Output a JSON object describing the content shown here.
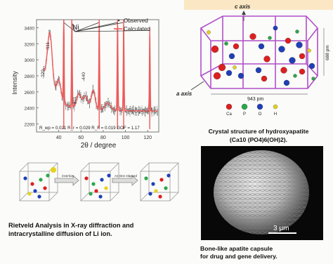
{
  "chart_data": {
    "type": "line",
    "xlabel": "2θ / degree",
    "ylabel": "Intensity",
    "xlim": [
      20,
      130
    ],
    "ylim": [
      2100,
      3500
    ],
    "x_ticks": [
      40,
      60,
      80,
      100,
      120
    ],
    "y_ticks": [
      2200,
      2400,
      2600,
      2800,
      3000,
      3200,
      3400
    ],
    "legend": [
      "Observed",
      "Calculated"
    ],
    "peak_label": "Ni",
    "reflection_labels": [
      "-111",
      "-220",
      "311",
      "-440"
    ],
    "stats_text": "R_wp = 0.021  R_r = 0.029  R_F = 0.019  GOF = 1.17",
    "peaks": [
      {
        "x": 44.5,
        "y": 3500
      },
      {
        "x": 51.8,
        "y": 3500
      },
      {
        "x": 76.4,
        "y": 3500
      },
      {
        "x": 92.9,
        "y": 3500
      },
      {
        "x": 98.4,
        "y": 3500
      },
      {
        "x": 121.9,
        "y": 3400
      }
    ],
    "grid": false,
    "legend_position": "top-right"
  },
  "diffusion": {
    "step1": "insertion",
    "step2": "As time elapsed"
  },
  "crystal": {
    "c_axis": "c axis",
    "a_axis": "a axis",
    "width_label": "943 pm",
    "height_label": "688 pm",
    "legend": [
      {
        "label": "Ca",
        "color": "#dd1f1f"
      },
      {
        "label": "P",
        "color": "#2aa84a"
      },
      {
        "label": "O",
        "color": "#1f3fb8"
      },
      {
        "label": "H",
        "color": "#e6d21e"
      }
    ]
  },
  "captions": {
    "rietveld_line1": "Rietveld Analysis in X-ray diffraction and",
    "rietveld_line2": "intracrystalline diffusion of Li ion.",
    "crystal_line1": "Crystal structure of hydroxyapatite",
    "crystal_line2": "(Ca10 (PO4)6(OH)2).",
    "capsule_line1": "Bone-like apatite capsule",
    "capsule_line2": "for drug and gene delivery.",
    "scale_bar": "3 μm"
  }
}
